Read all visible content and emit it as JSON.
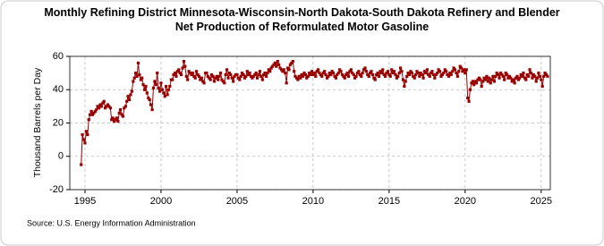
{
  "chart_data": {
    "type": "line",
    "title": "Monthly Refining District Minnesota-Wisconsin-North Dakota-South Dakota Refinery and Blender Net Production of Reformulated Motor Gasoline",
    "ylabel": "Thousand Barrels per Day",
    "source": "Source: U.S. Energy Information Administration",
    "xlim": [
      1994,
      2025.6
    ],
    "xticks": [
      1995,
      2000,
      2005,
      2010,
      2015,
      2020,
      2025
    ],
    "ylim": [
      -20,
      60
    ],
    "yticks": [
      -20,
      0,
      20,
      40,
      60
    ],
    "grid": true,
    "x": [
      1994.75,
      1994.83,
      1994.92,
      1995,
      1995.08,
      1995.17,
      1995.25,
      1995.33,
      1995.42,
      1995.5,
      1995.58,
      1995.67,
      1995.75,
      1995.83,
      1995.92,
      1996,
      1996.08,
      1996.17,
      1996.25,
      1996.33,
      1996.42,
      1996.5,
      1996.58,
      1996.67,
      1996.75,
      1996.83,
      1996.92,
      1997,
      1997.08,
      1997.17,
      1997.25,
      1997.33,
      1997.42,
      1997.5,
      1997.58,
      1997.67,
      1997.75,
      1997.83,
      1997.92,
      1998,
      1998.08,
      1998.17,
      1998.25,
      1998.33,
      1998.42,
      1998.5,
      1998.58,
      1998.67,
      1998.75,
      1998.83,
      1998.92,
      1999,
      1999.08,
      1999.17,
      1999.25,
      1999.33,
      1999.42,
      1999.5,
      1999.58,
      1999.67,
      1999.75,
      1999.83,
      1999.92,
      2000,
      2000.08,
      2000.17,
      2000.25,
      2000.33,
      2000.42,
      2000.5,
      2000.58,
      2000.67,
      2000.75,
      2000.83,
      2000.92,
      2001,
      2001.08,
      2001.17,
      2001.25,
      2001.33,
      2001.42,
      2001.5,
      2001.58,
      2001.67,
      2001.75,
      2001.83,
      2001.92,
      2002,
      2002.08,
      2002.17,
      2002.25,
      2002.33,
      2002.42,
      2002.5,
      2002.58,
      2002.67,
      2002.75,
      2002.83,
      2002.92,
      2003,
      2003.08,
      2003.17,
      2003.25,
      2003.33,
      2003.42,
      2003.5,
      2003.58,
      2003.67,
      2003.75,
      2003.83,
      2003.92,
      2004,
      2004.08,
      2004.17,
      2004.25,
      2004.33,
      2004.42,
      2004.5,
      2004.58,
      2004.67,
      2004.75,
      2004.83,
      2004.92,
      2005,
      2005.08,
      2005.17,
      2005.25,
      2005.33,
      2005.42,
      2005.5,
      2005.58,
      2005.67,
      2005.75,
      2005.83,
      2005.92,
      2006,
      2006.08,
      2006.17,
      2006.25,
      2006.33,
      2006.42,
      2006.5,
      2006.58,
      2006.67,
      2006.75,
      2006.83,
      2006.92,
      2007,
      2007.08,
      2007.17,
      2007.25,
      2007.33,
      2007.42,
      2007.5,
      2007.58,
      2007.67,
      2007.75,
      2007.83,
      2007.92,
      2008,
      2008.08,
      2008.17,
      2008.25,
      2008.33,
      2008.42,
      2008.5,
      2008.58,
      2008.67,
      2008.75,
      2008.83,
      2008.92,
      2009,
      2009.08,
      2009.17,
      2009.25,
      2009.33,
      2009.42,
      2009.5,
      2009.58,
      2009.67,
      2009.75,
      2009.83,
      2009.92,
      2010,
      2010.08,
      2010.17,
      2010.25,
      2010.33,
      2010.42,
      2010.5,
      2010.58,
      2010.67,
      2010.75,
      2010.83,
      2010.92,
      2011,
      2011.08,
      2011.17,
      2011.25,
      2011.33,
      2011.42,
      2011.5,
      2011.58,
      2011.67,
      2011.75,
      2011.83,
      2011.92,
      2012,
      2012.08,
      2012.17,
      2012.25,
      2012.33,
      2012.42,
      2012.5,
      2012.58,
      2012.67,
      2012.75,
      2012.83,
      2012.92,
      2013,
      2013.08,
      2013.17,
      2013.25,
      2013.33,
      2013.42,
      2013.5,
      2013.58,
      2013.67,
      2013.75,
      2013.83,
      2013.92,
      2014,
      2014.08,
      2014.17,
      2014.25,
      2014.33,
      2014.42,
      2014.5,
      2014.58,
      2014.67,
      2014.75,
      2014.83,
      2014.92,
      2015,
      2015.08,
      2015.17,
      2015.25,
      2015.33,
      2015.42,
      2015.5,
      2015.58,
      2015.67,
      2015.75,
      2015.83,
      2015.92,
      2016,
      2016.08,
      2016.17,
      2016.25,
      2016.33,
      2016.42,
      2016.5,
      2016.58,
      2016.67,
      2016.75,
      2016.83,
      2016.92,
      2017,
      2017.08,
      2017.17,
      2017.25,
      2017.33,
      2017.42,
      2017.5,
      2017.58,
      2017.67,
      2017.75,
      2017.83,
      2017.92,
      2018,
      2018.08,
      2018.17,
      2018.25,
      2018.33,
      2018.42,
      2018.5,
      2018.58,
      2018.67,
      2018.75,
      2018.83,
      2018.92,
      2019,
      2019.08,
      2019.17,
      2019.25,
      2019.33,
      2019.42,
      2019.5,
      2019.58,
      2019.67,
      2019.75,
      2019.83,
      2019.92,
      2020,
      2020.08,
      2020.17,
      2020.25,
      2020.33,
      2020.42,
      2020.5,
      2020.58,
      2020.67,
      2020.75,
      2020.83,
      2020.92,
      2021,
      2021.08,
      2021.17,
      2021.25,
      2021.33,
      2021.42,
      2021.5,
      2021.58,
      2021.67,
      2021.75,
      2021.83,
      2021.92,
      2022,
      2022.08,
      2022.17,
      2022.25,
      2022.33,
      2022.42,
      2022.5,
      2022.58,
      2022.67,
      2022.75,
      2022.83,
      2022.92,
      2023,
      2023.08,
      2023.17,
      2023.25,
      2023.33,
      2023.42,
      2023.5,
      2023.58,
      2023.67,
      2023.75,
      2023.83,
      2023.92,
      2024,
      2024.08,
      2024.17,
      2024.25,
      2024.33,
      2024.42,
      2024.5,
      2024.58,
      2024.67,
      2024.75,
      2024.83,
      2024.92,
      2025,
      2025.08,
      2025.17,
      2025.25,
      2025.33,
      2025.42
    ],
    "series": [
      {
        "color": "#990000",
        "values": [
          -5,
          13,
          10,
          8,
          15,
          13,
          22,
          25,
          27,
          25,
          26,
          27,
          28,
          30,
          29,
          31,
          30,
          32,
          33,
          29,
          30,
          31,
          30,
          29,
          22,
          23,
          21,
          22,
          23,
          21,
          26,
          28,
          25,
          24,
          29,
          30,
          33,
          36,
          34,
          37,
          39,
          45,
          47,
          50,
          48,
          56,
          49,
          46,
          47,
          43,
          40,
          42,
          38,
          35,
          34,
          31,
          28,
          41,
          45,
          43,
          50,
          41,
          39,
          44,
          40,
          38,
          36,
          42,
          37,
          40,
          42,
          46,
          46,
          49,
          50,
          48,
          51,
          52,
          50,
          49,
          53,
          57,
          54,
          48,
          46,
          51,
          50,
          49,
          50,
          48,
          47,
          51,
          49,
          48,
          46,
          47,
          45,
          44,
          50,
          50,
          48,
          47,
          46,
          49,
          48,
          45,
          47,
          48,
          46,
          48,
          50,
          46,
          45,
          44,
          49,
          52,
          47,
          50,
          49,
          47,
          45,
          48,
          49,
          49,
          47,
          46,
          48,
          50,
          49,
          47,
          48,
          51,
          49,
          50,
          48,
          47,
          48,
          49,
          50,
          47,
          49,
          51,
          48,
          46,
          49,
          50,
          48,
          50,
          52,
          51,
          53,
          54,
          55,
          56,
          54,
          57,
          55,
          53,
          52,
          51,
          52,
          50,
          44,
          53,
          52,
          55,
          56,
          57,
          51,
          48,
          47,
          46,
          48,
          47,
          49,
          48,
          50,
          49,
          47,
          48,
          50,
          49,
          51,
          49,
          50,
          48,
          51,
          52,
          50,
          49,
          48,
          50,
          51,
          49,
          47,
          48,
          50,
          49,
          51,
          50,
          48,
          47,
          49,
          50,
          52,
          51,
          49,
          48,
          47,
          49,
          50,
          48,
          51,
          52,
          50,
          49,
          47,
          48,
          50,
          51,
          49,
          48,
          50,
          52,
          53,
          51,
          49,
          48,
          50,
          51,
          49,
          47,
          46,
          49,
          50,
          48,
          51,
          50,
          52,
          49,
          48,
          50,
          51,
          49,
          48,
          52,
          50,
          51,
          49,
          47,
          48,
          50,
          53,
          51,
          46,
          42,
          45,
          48,
          50,
          49,
          51,
          50,
          48,
          47,
          49,
          51,
          50,
          48,
          50,
          49,
          47,
          51,
          50,
          52,
          49,
          48,
          50,
          51,
          49,
          47,
          49,
          50,
          52,
          51,
          48,
          49,
          50,
          52,
          51,
          49,
          48,
          50,
          49,
          51,
          53,
          52,
          50,
          48,
          51,
          54,
          53,
          51,
          52,
          50,
          52,
          35,
          33,
          40,
          44,
          45,
          43,
          45,
          44,
          46,
          47,
          46,
          42,
          45,
          47,
          46,
          48,
          45,
          47,
          44,
          46,
          48,
          45,
          48,
          50,
          49,
          47,
          50,
          49,
          48,
          46,
          50,
          49,
          47,
          48,
          47,
          45,
          46,
          44,
          47,
          48,
          46,
          47,
          49,
          48,
          50,
          47,
          46,
          49,
          48,
          52,
          50,
          47,
          49,
          48,
          45,
          47,
          50,
          48,
          46,
          42,
          48,
          50,
          49,
          48
        ]
      }
    ]
  }
}
